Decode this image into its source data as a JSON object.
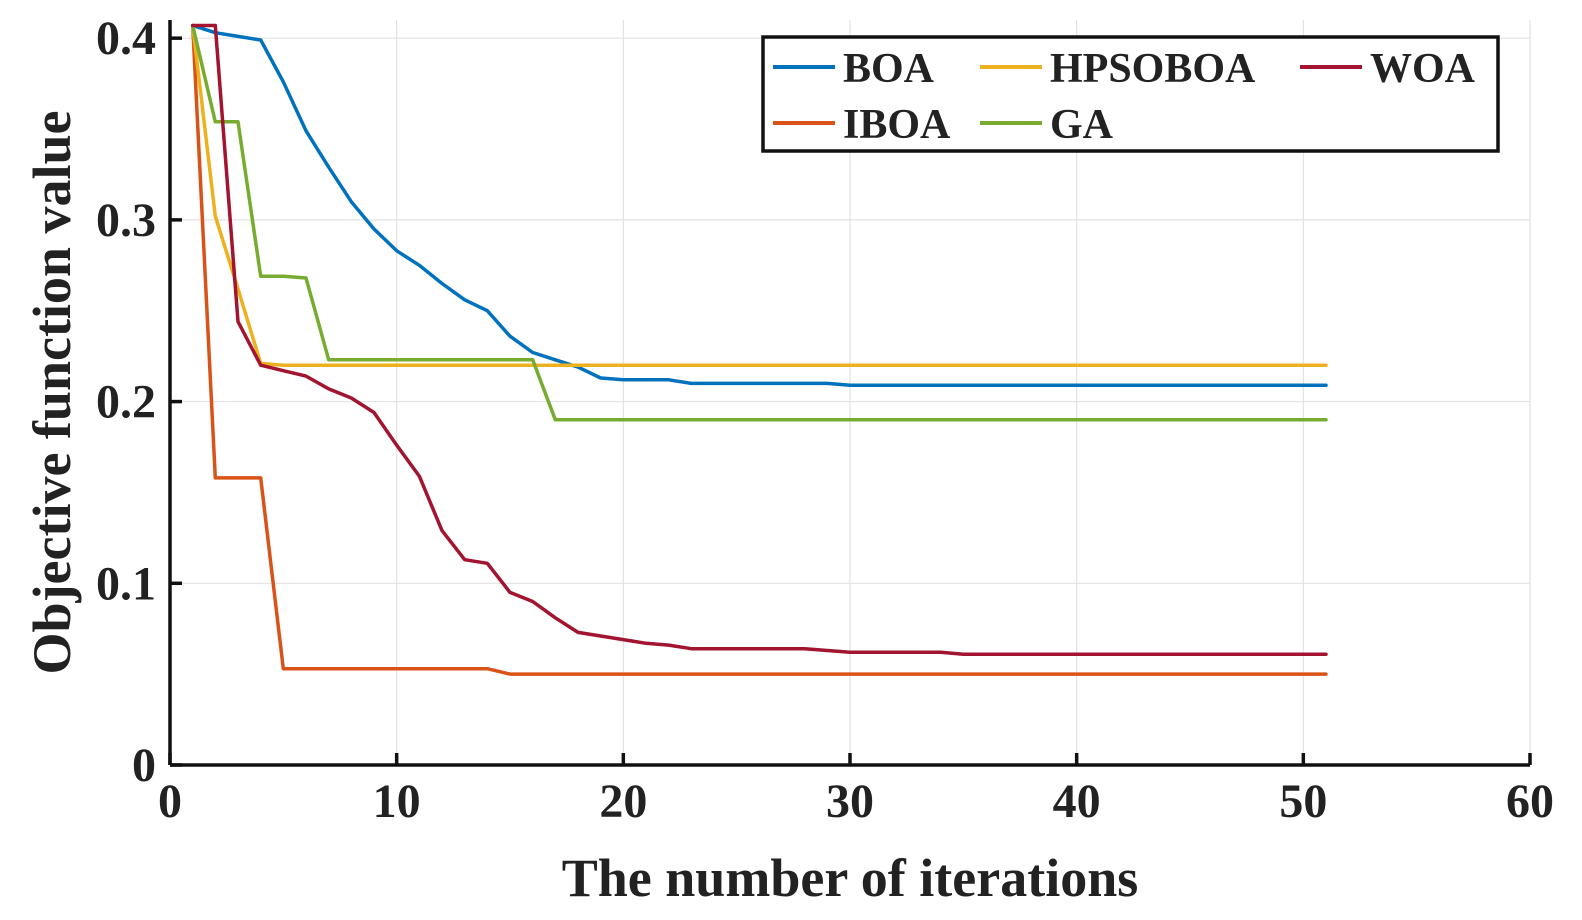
{
  "chart_data": {
    "type": "line",
    "title": "",
    "xlabel": "The number of iterations",
    "ylabel": "Objective function value",
    "xlim": [
      0,
      60
    ],
    "ylim": [
      0,
      0.41
    ],
    "xticks": [
      0,
      10,
      20,
      30,
      40,
      50,
      60
    ],
    "yticks": [
      0,
      0.1,
      0.2,
      0.3,
      0.4
    ],
    "xtick_labels": [
      "0",
      "10",
      "20",
      "30",
      "40",
      "50",
      "60"
    ],
    "ytick_labels": [
      "0",
      "0.1",
      "0.2",
      "0.3",
      "0.4"
    ],
    "grid": true,
    "legend_position": "top-right",
    "x": [
      1,
      2,
      3,
      4,
      5,
      6,
      7,
      8,
      9,
      10,
      11,
      12,
      13,
      14,
      15,
      16,
      17,
      18,
      19,
      20,
      21,
      22,
      23,
      24,
      25,
      26,
      27,
      28,
      29,
      30,
      31,
      32,
      33,
      34,
      35,
      36,
      37,
      38,
      39,
      40,
      41,
      42,
      43,
      44,
      45,
      46,
      47,
      48,
      49,
      50,
      51
    ],
    "series": [
      {
        "name": "BOA",
        "color": "#0072BD",
        "values": [
          0.407,
          0.403,
          0.401,
          0.399,
          0.376,
          0.349,
          0.329,
          0.31,
          0.295,
          0.283,
          0.275,
          0.265,
          0.256,
          0.25,
          0.236,
          0.227,
          0.223,
          0.219,
          0.213,
          0.212,
          0.212,
          0.212,
          0.21,
          0.21,
          0.21,
          0.21,
          0.21,
          0.21,
          0.21,
          0.209,
          0.209,
          0.209,
          0.209,
          0.209,
          0.209,
          0.209,
          0.209,
          0.209,
          0.209,
          0.209,
          0.209,
          0.209,
          0.209,
          0.209,
          0.209,
          0.209,
          0.209,
          0.209,
          0.209,
          0.209,
          0.209
        ]
      },
      {
        "name": "IBOA",
        "color": "#D95319",
        "values": [
          0.407,
          0.158,
          0.158,
          0.158,
          0.053,
          0.053,
          0.053,
          0.053,
          0.053,
          0.053,
          0.053,
          0.053,
          0.053,
          0.053,
          0.05,
          0.05,
          0.05,
          0.05,
          0.05,
          0.05,
          0.05,
          0.05,
          0.05,
          0.05,
          0.05,
          0.05,
          0.05,
          0.05,
          0.05,
          0.05,
          0.05,
          0.05,
          0.05,
          0.05,
          0.05,
          0.05,
          0.05,
          0.05,
          0.05,
          0.05,
          0.05,
          0.05,
          0.05,
          0.05,
          0.05,
          0.05,
          0.05,
          0.05,
          0.05,
          0.05,
          0.05
        ]
      },
      {
        "name": "HPSOBOA",
        "color": "#EDB120",
        "values": [
          0.407,
          0.302,
          0.262,
          0.221,
          0.22,
          0.22,
          0.22,
          0.22,
          0.22,
          0.22,
          0.22,
          0.22,
          0.22,
          0.22,
          0.22,
          0.22,
          0.22,
          0.22,
          0.22,
          0.22,
          0.22,
          0.22,
          0.22,
          0.22,
          0.22,
          0.22,
          0.22,
          0.22,
          0.22,
          0.22,
          0.22,
          0.22,
          0.22,
          0.22,
          0.22,
          0.22,
          0.22,
          0.22,
          0.22,
          0.22,
          0.22,
          0.22,
          0.22,
          0.22,
          0.22,
          0.22,
          0.22,
          0.22,
          0.22,
          0.22,
          0.22
        ]
      },
      {
        "name": "GA",
        "color": "#77AC30",
        "values": [
          0.407,
          0.354,
          0.354,
          0.269,
          0.269,
          0.268,
          0.223,
          0.223,
          0.223,
          0.223,
          0.223,
          0.223,
          0.223,
          0.223,
          0.223,
          0.223,
          0.19,
          0.19,
          0.19,
          0.19,
          0.19,
          0.19,
          0.19,
          0.19,
          0.19,
          0.19,
          0.19,
          0.19,
          0.19,
          0.19,
          0.19,
          0.19,
          0.19,
          0.19,
          0.19,
          0.19,
          0.19,
          0.19,
          0.19,
          0.19,
          0.19,
          0.19,
          0.19,
          0.19,
          0.19,
          0.19,
          0.19,
          0.19,
          0.19,
          0.19,
          0.19
        ]
      },
      {
        "name": "WOA",
        "color": "#A2142F",
        "values": [
          0.407,
          0.407,
          0.244,
          0.22,
          0.217,
          0.214,
          0.207,
          0.202,
          0.194,
          0.176,
          0.159,
          0.129,
          0.113,
          0.111,
          0.095,
          0.09,
          0.081,
          0.073,
          0.071,
          0.069,
          0.067,
          0.066,
          0.064,
          0.064,
          0.064,
          0.064,
          0.064,
          0.064,
          0.063,
          0.062,
          0.062,
          0.062,
          0.062,
          0.062,
          0.061,
          0.061,
          0.061,
          0.061,
          0.061,
          0.061,
          0.061,
          0.061,
          0.061,
          0.061,
          0.061,
          0.061,
          0.061,
          0.061,
          0.061,
          0.061,
          0.061
        ]
      }
    ],
    "legend_entries": [
      {
        "label": "BOA",
        "color": "#0072BD"
      },
      {
        "label": "HPSOBOA",
        "color": "#EDB120"
      },
      {
        "label": "WOA",
        "color": "#A2142F"
      },
      {
        "label": "IBOA",
        "color": "#D95319"
      },
      {
        "label": "GA",
        "color": "#77AC30"
      }
    ]
  }
}
